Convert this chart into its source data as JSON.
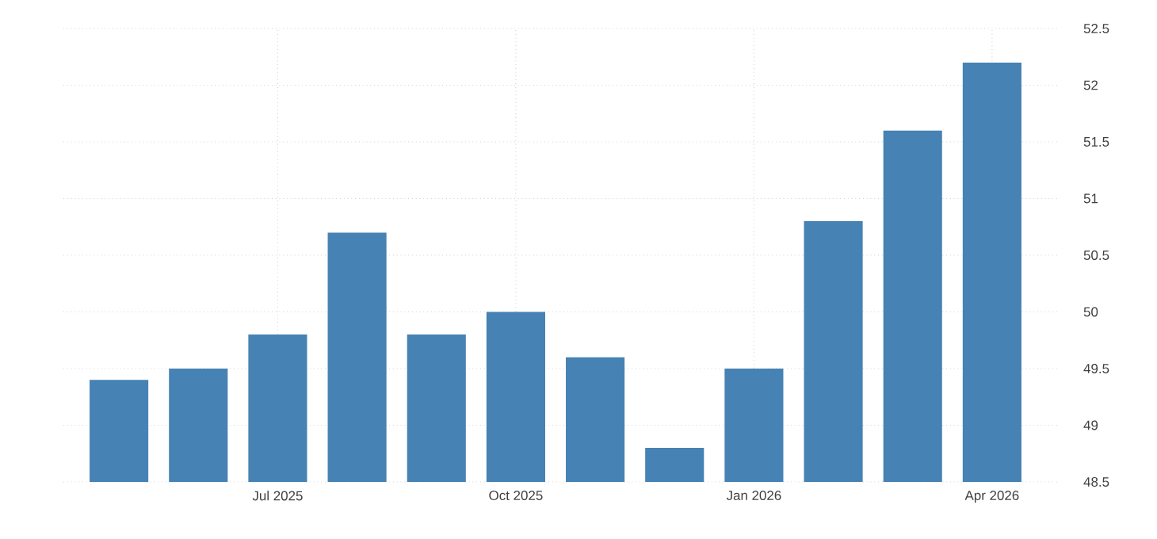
{
  "chart_data": {
    "type": "bar",
    "categories": [
      null,
      null,
      "Jul 2025",
      null,
      null,
      "Oct 2025",
      null,
      null,
      "Jan 2026",
      null,
      null,
      "Apr 2026"
    ],
    "values": [
      49.4,
      49.5,
      49.8,
      50.7,
      49.8,
      50.0,
      49.6,
      48.8,
      49.5,
      50.8,
      51.6,
      52.2
    ],
    "color": "#4682b4",
    "ylim": [
      48.5,
      52.5
    ],
    "yticks": [
      48.5,
      49,
      49.5,
      50,
      50.5,
      51,
      51.5,
      52,
      52.5
    ],
    "grid": true
  }
}
